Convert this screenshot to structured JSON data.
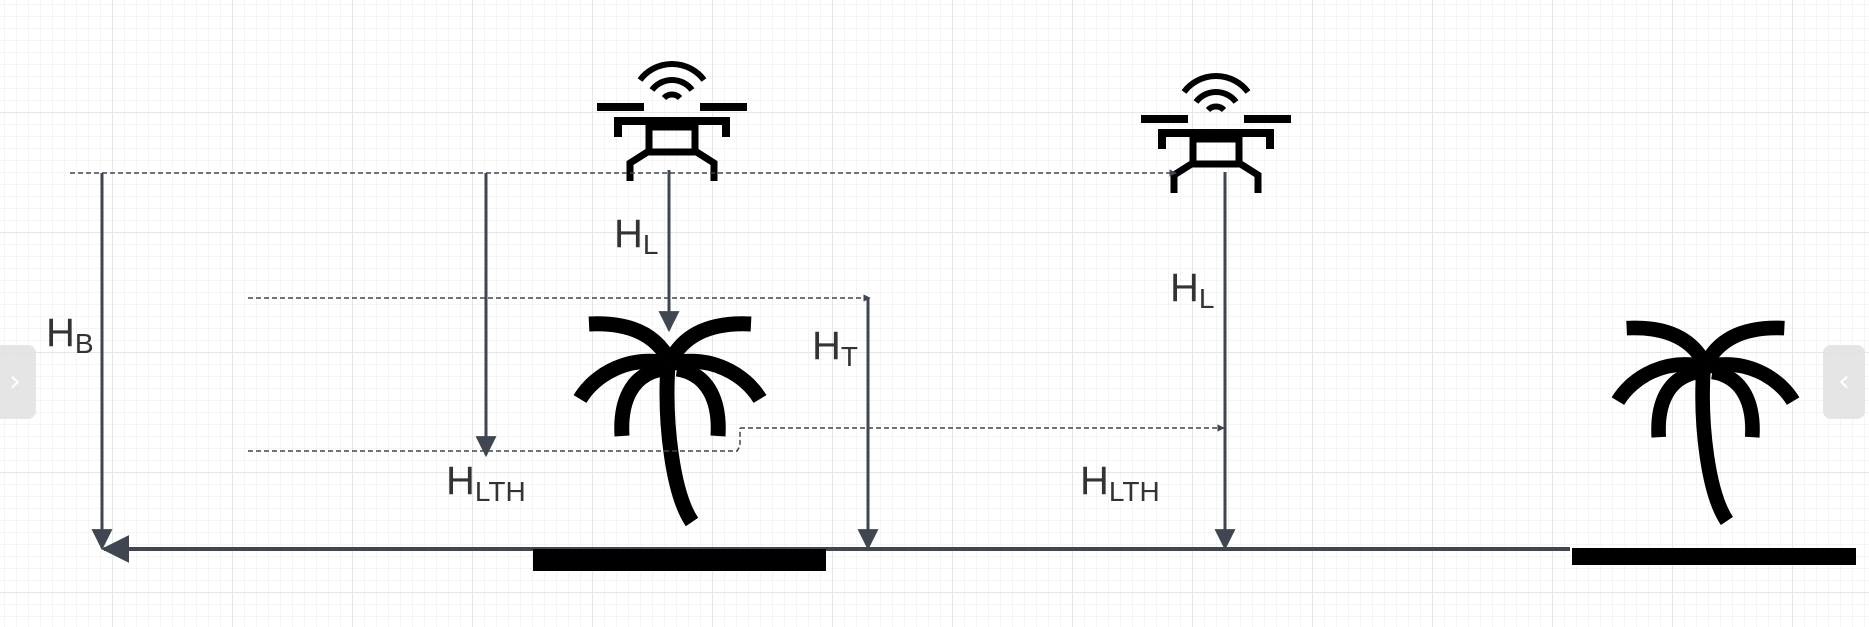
{
  "labels": {
    "hb": {
      "main": "H",
      "sub": "B"
    },
    "hl_left": {
      "main": "H",
      "sub": "L"
    },
    "hlth_left": {
      "main": "H",
      "sub": "LTH"
    },
    "ht": {
      "main": "H",
      "sub": "T"
    },
    "hl_right": {
      "main": "H",
      "sub": "L"
    },
    "hlth_right": {
      "main": "H",
      "sub": "LTH"
    }
  },
  "icons": {
    "drone": "drone-icon",
    "palm": "palm-tree-icon",
    "nav_prev": "chevron-right-icon",
    "nav_next": "chevron-left-icon"
  },
  "nav": {
    "prev_glyph": "›",
    "next_glyph": "‹"
  },
  "colors": {
    "line": "#3f4650",
    "icon": "#000000",
    "text": "#333333",
    "grid": "#e6e6e6"
  }
}
